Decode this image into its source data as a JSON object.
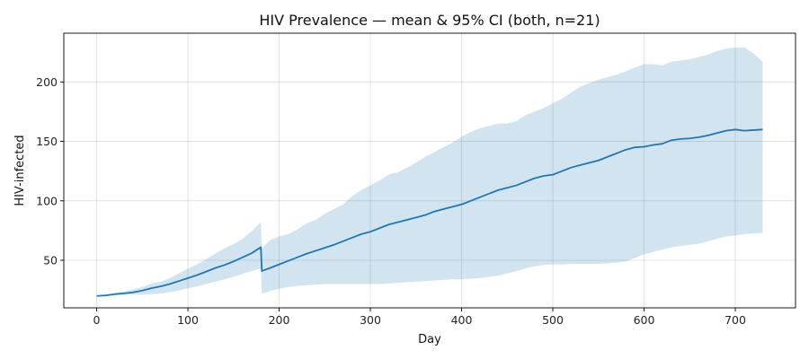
{
  "chart_data": {
    "type": "line",
    "title": "HIV Prevalence — mean & 95% CI (both, n=21)",
    "xlabel": "Day",
    "ylabel": "HIV-infected",
    "xlim": [
      -36,
      766
    ],
    "ylim": [
      10,
      241
    ],
    "xticks": [
      0,
      100,
      200,
      300,
      400,
      500,
      600,
      700
    ],
    "yticks": [
      50,
      100,
      150,
      200
    ],
    "grid": true,
    "colors": {
      "line": "#1f77b4",
      "band": "#1f77b4",
      "band_opacity": 0.2
    },
    "series": [
      {
        "x": [
          0,
          10,
          20,
          30,
          40,
          50,
          60,
          70,
          80,
          90,
          100,
          110,
          120,
          130,
          140,
          150,
          160,
          170,
          180,
          181,
          190,
          200,
          210,
          220,
          230,
          240,
          250,
          260,
          270,
          280,
          290,
          300,
          310,
          320,
          330,
          340,
          350,
          360,
          370,
          380,
          390,
          400,
          410,
          420,
          430,
          440,
          450,
          460,
          470,
          480,
          490,
          500,
          510,
          520,
          530,
          540,
          550,
          560,
          570,
          580,
          590,
          600,
          610,
          620,
          630,
          640,
          650,
          660,
          670,
          680,
          690,
          700,
          710,
          720,
          730
        ],
        "values": [
          20,
          20.5,
          21.5,
          22.2,
          23,
          24.5,
          26.5,
          28,
          30,
          32.5,
          35,
          37.5,
          40.5,
          43.5,
          46,
          49,
          52.5,
          56,
          61,
          41,
          43.5,
          46.5,
          49.5,
          52.5,
          55.5,
          58,
          60.5,
          63,
          66,
          69,
          72,
          74,
          77,
          80,
          82,
          84,
          86,
          88,
          91,
          93,
          95,
          97,
          100,
          103,
          106,
          109,
          111,
          113,
          116,
          119,
          121,
          122,
          125,
          128,
          130,
          132,
          134,
          137,
          140,
          143,
          145,
          145.5,
          147,
          148,
          151,
          152,
          152.5,
          153.5,
          155,
          157,
          159,
          160,
          159,
          159.5,
          160
        ]
      }
    ],
    "ci": {
      "lower": [
        20,
        20,
        20.5,
        21,
        21,
        21,
        21.5,
        22,
        23,
        24.5,
        26.5,
        28,
        30,
        32,
        34,
        36,
        38.5,
        41,
        43,
        22,
        24,
        26,
        27.5,
        28.5,
        29,
        29.5,
        30,
        30,
        30,
        30,
        30,
        30,
        30,
        30.5,
        31,
        31.5,
        32,
        32.5,
        33,
        33.5,
        34,
        34,
        34.5,
        35,
        36,
        37,
        39,
        41,
        43,
        45,
        46,
        46.5,
        46.5,
        47,
        47,
        47,
        47,
        47.5,
        48,
        49,
        52,
        55,
        57,
        59,
        61,
        62,
        63,
        64,
        66,
        68,
        70,
        71,
        72,
        72.5,
        73
      ],
      "upper": [
        20,
        21,
        22.5,
        24,
        25.5,
        27.5,
        30.5,
        32,
        35,
        39,
        43,
        46.5,
        51,
        55.5,
        60,
        63.5,
        68,
        74.5,
        82,
        60,
        67,
        70,
        72,
        76,
        81,
        84,
        89,
        93,
        97,
        104,
        109,
        113,
        117,
        122,
        124,
        128,
        132,
        137,
        141,
        145,
        149,
        154,
        158,
        161,
        163,
        165,
        165,
        167,
        172,
        175,
        178,
        182,
        186,
        191,
        196,
        199,
        202,
        204,
        206,
        209,
        212,
        215,
        215,
        214,
        217,
        218,
        219,
        221,
        223,
        226,
        228,
        229,
        229,
        224,
        217
      ]
    }
  }
}
